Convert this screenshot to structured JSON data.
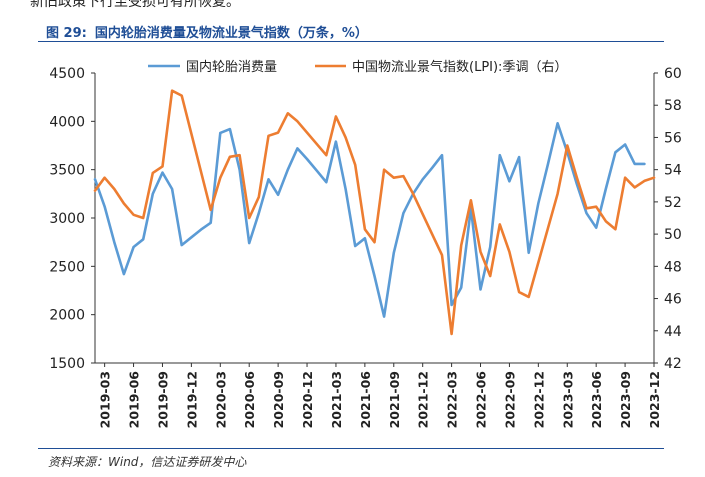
{
  "header_fragment": "新旧政策下行至受损可有所恢复。",
  "figure": {
    "number": "图 29:",
    "title": "国内轮胎消费量及物流业景气指数（万条，%）"
  },
  "source": "资料来源：Wind，信达证券研发中心",
  "colors": {
    "tire": "#5b9bd5",
    "lpi": "#ed7d31",
    "title": "#1f4e96",
    "axis": "#333333"
  },
  "chart_data": {
    "type": "line",
    "title": "国内轮胎消费量及物流业景气指数（万条，%）",
    "x_tick_labels": [
      "2019-03",
      "2019-06",
      "2019-09",
      "2019-12",
      "2020-03",
      "2020-06",
      "2020-09",
      "2020-12",
      "2021-03",
      "2021-06",
      "2021-09",
      "2021-12",
      "2022-03",
      "2022-06",
      "2022-09",
      "2022-12",
      "2023-03",
      "2023-06",
      "2023-09",
      "2023-12"
    ],
    "left_axis": {
      "min": 1500,
      "max": 4500,
      "ticks": [
        "1500",
        "2000",
        "2500",
        "3000",
        "3500",
        "4000",
        "4500"
      ]
    },
    "right_axis": {
      "min": 42,
      "max": 60,
      "ticks": [
        "42",
        "44",
        "46",
        "48",
        "50",
        "52",
        "54",
        "56",
        "58",
        "60"
      ]
    },
    "legend_position": "top",
    "series": [
      {
        "name": "国内轮胎消费量",
        "axis": "left",
        "color": "#5b9bd5",
        "months": [
          "2019-02",
          "2019-03",
          "2019-04",
          "2019-05",
          "2019-06",
          "2019-07",
          "2019-08",
          "2019-09",
          "2019-10",
          "2019-11",
          "2019-12",
          "2020-01",
          "2020-02",
          "2020-03",
          "2020-04",
          "2020-05",
          "2020-06",
          "2020-07",
          "2020-08",
          "2020-09",
          "2020-10",
          "2020-11",
          "2020-12",
          "2021-01",
          "2021-02",
          "2021-03",
          "2021-04",
          "2021-05",
          "2021-06",
          "2021-07",
          "2021-08",
          "2021-09",
          "2021-10",
          "2021-11",
          "2021-12",
          "2022-01",
          "2022-02",
          "2022-03",
          "2022-04",
          "2022-05",
          "2022-06",
          "2022-07",
          "2022-08",
          "2022-09",
          "2022-10",
          "2022-11",
          "2022-12",
          "2023-01",
          "2023-02",
          "2023-03",
          "2023-04",
          "2023-05",
          "2023-06",
          "2023-07",
          "2023-08",
          "2023-09",
          "2023-10",
          "2023-11",
          "2023-12"
        ],
        "values": [
          3400,
          3120,
          2750,
          2420,
          2700,
          2780,
          3250,
          3470,
          3300,
          2720,
          2800,
          2880,
          2950,
          3880,
          3920,
          3500,
          2740,
          3050,
          3400,
          3240,
          3500,
          3720,
          3610,
          3490,
          3370,
          3790,
          3300,
          2710,
          2790,
          2400,
          1980,
          2640,
          3050,
          3250,
          3400,
          3520,
          3650,
          2100,
          2280,
          3100,
          2260,
          2700,
          3650,
          3380,
          3630,
          2640,
          3150,
          3560,
          3980,
          3680,
          3350,
          3050,
          2900,
          3300,
          3680,
          3760,
          3560,
          3560,
          null
        ]
      },
      {
        "name": "中国物流业景气指数(LPI):季调（右）",
        "axis": "right",
        "color": "#ed7d31",
        "months": [
          "2019-02",
          "2019-03",
          "2019-04",
          "2019-05",
          "2019-06",
          "2019-07",
          "2019-08",
          "2019-09",
          "2019-10",
          "2019-11",
          "2019-12",
          "2020-01",
          "2020-02",
          "2020-03",
          "2020-04",
          "2020-05",
          "2020-06",
          "2020-07",
          "2020-08",
          "2020-09",
          "2020-10",
          "2020-11",
          "2020-12",
          "2021-01",
          "2021-02",
          "2021-03",
          "2021-04",
          "2021-05",
          "2021-06",
          "2021-07",
          "2021-08",
          "2021-09",
          "2021-10",
          "2021-11",
          "2021-12",
          "2022-01",
          "2022-02",
          "2022-03",
          "2022-04",
          "2022-05",
          "2022-06",
          "2022-07",
          "2022-08",
          "2022-09",
          "2022-10",
          "2022-11",
          "2022-12",
          "2023-01",
          "2023-02",
          "2023-03",
          "2023-04",
          "2023-05",
          "2023-06",
          "2023-07",
          "2023-08",
          "2023-09",
          "2023-10",
          "2023-11",
          "2023-12"
        ],
        "values": [
          52.7,
          53.5,
          52.8,
          51.9,
          51.2,
          51.0,
          53.8,
          54.2,
          58.9,
          58.6,
          null,
          null,
          51.5,
          53.5,
          54.8,
          54.9,
          51.0,
          52.3,
          56.1,
          56.3,
          57.5,
          57.0,
          null,
          null,
          54.9,
          57.3,
          56.0,
          54.3,
          50.3,
          49.5,
          54.0,
          53.5,
          53.6,
          52.5,
          null,
          null,
          48.7,
          43.8,
          49.3,
          52.1,
          48.9,
          47.4,
          50.6,
          48.9,
          46.4,
          46.1,
          null,
          null,
          52.5,
          55.5,
          53.5,
          51.6,
          51.7,
          50.8,
          50.3,
          53.5,
          52.9,
          53.3,
          53.5
        ]
      }
    ]
  }
}
